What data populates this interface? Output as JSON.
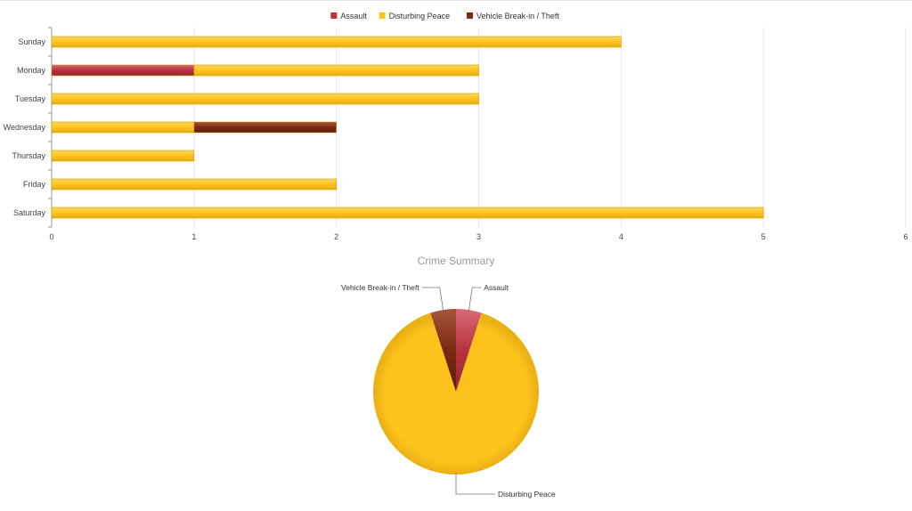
{
  "colors": {
    "Assault": "#b8323f",
    "Disturbing Peace": "#fdc31c",
    "Vehicle Break-in / Theft": "#7a2a12"
  },
  "chart_data": [
    {
      "type": "bar",
      "orientation": "horizontal",
      "stacked": true,
      "categories": [
        "Sunday",
        "Monday",
        "Tuesday",
        "Wednesday",
        "Thursday",
        "Friday",
        "Saturday"
      ],
      "series": [
        {
          "name": "Assault",
          "values": [
            0,
            1,
            0,
            0,
            0,
            0,
            0
          ]
        },
        {
          "name": "Disturbing Peace",
          "values": [
            4,
            2,
            3,
            1,
            1,
            2,
            5
          ]
        },
        {
          "name": "Vehicle Break-in / Theft",
          "values": [
            0,
            0,
            0,
            1,
            0,
            0,
            0
          ]
        }
      ],
      "xlim": [
        0,
        6
      ],
      "xticks": [
        "0",
        "1",
        "2",
        "3",
        "4",
        "5",
        "6"
      ],
      "grid": true,
      "legend_position": "top-center"
    },
    {
      "type": "pie",
      "title": "Crime Summary",
      "slices": [
        {
          "label": "Assault",
          "value": 1
        },
        {
          "label": "Disturbing Peace",
          "value": 18
        },
        {
          "label": "Vehicle Break-in / Theft",
          "value": 1
        }
      ]
    }
  ]
}
